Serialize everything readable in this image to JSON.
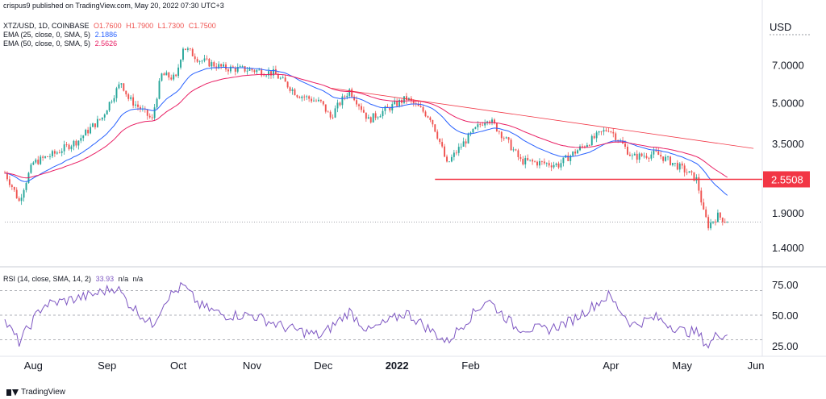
{
  "publish_line": "crispus9 published on TradingView.com, May 20, 2022 07:30 UTC+3",
  "legend": {
    "symbol": "XTZ/USD, 1D, COINBASE",
    "open": "O1.7600",
    "high": "H1.7900",
    "low": "L1.7300",
    "close": "C1.7500",
    "ema25": "EMA (25, close, 0, SMA, 5)",
    "ema25_value": "2.1886",
    "ema50": "EMA (50, close, 0, SMA, 5)",
    "ema50_value": "2.5626",
    "rsi": "RSI (14, close, SMA, 14, 2)",
    "rsi_value": "33.93",
    "rsi_na1": "n/a",
    "rsi_na2": "n/a"
  },
  "footer": {
    "brand": "TradingView"
  },
  "colors": {
    "up": "#26a69a",
    "down": "#ef5350",
    "ema25": "#2962ff",
    "ema50": "#e91e63",
    "rsi": "#7e57c2",
    "level": "#f23645",
    "trend": "#f23645",
    "grid": "#dcdfe6"
  },
  "chart_data": [
    {
      "type": "candlestick",
      "symbol": "XTZ/USD",
      "interval": "1D",
      "exchange": "COINBASE",
      "y_scale": "log",
      "currency_label": "USD",
      "y_ticks": [
        1.4,
        1.9,
        3.5,
        5.0,
        7.0
      ],
      "y_tick_labels": [
        "1.4000",
        "1.9000",
        "3.5000",
        "5.0000",
        "7.0000"
      ],
      "x_tick_labels": [
        "Aug",
        "Sep",
        "Oct",
        "Nov",
        "Dec",
        "2022",
        "Feb",
        "Apr",
        "May",
        "Jun"
      ],
      "x_range": [
        "2021-07-20",
        "2022-06-02"
      ],
      "price_anchors": [
        {
          "date": "2021-07-20",
          "close": 2.7
        },
        {
          "date": "2021-07-26",
          "close": 2.1
        },
        {
          "date": "2021-08-01",
          "close": 2.95
        },
        {
          "date": "2021-08-10",
          "close": 3.2
        },
        {
          "date": "2021-08-20",
          "close": 3.6
        },
        {
          "date": "2021-08-30",
          "close": 4.4
        },
        {
          "date": "2021-09-07",
          "close": 6.0
        },
        {
          "date": "2021-09-10",
          "close": 5.2
        },
        {
          "date": "2021-09-20",
          "close": 4.3
        },
        {
          "date": "2021-09-24",
          "close": 6.4
        },
        {
          "date": "2021-09-30",
          "close": 6.2
        },
        {
          "date": "2021-10-03",
          "close": 8.2
        },
        {
          "date": "2021-10-10",
          "close": 7.3
        },
        {
          "date": "2021-10-20",
          "close": 6.8
        },
        {
          "date": "2021-10-31",
          "close": 6.7
        },
        {
          "date": "2021-11-10",
          "close": 6.5
        },
        {
          "date": "2021-11-20",
          "close": 5.4
        },
        {
          "date": "2021-11-30",
          "close": 5.0
        },
        {
          "date": "2021-12-04",
          "close": 4.4
        },
        {
          "date": "2021-12-12",
          "close": 5.6
        },
        {
          "date": "2021-12-20",
          "close": 4.3
        },
        {
          "date": "2022-01-05",
          "close": 5.2
        },
        {
          "date": "2022-01-15",
          "close": 4.4
        },
        {
          "date": "2022-01-22",
          "close": 2.9
        },
        {
          "date": "2022-01-30",
          "close": 3.6
        },
        {
          "date": "2022-02-08",
          "close": 4.4
        },
        {
          "date": "2022-02-22",
          "close": 3.0
        },
        {
          "date": "2022-03-10",
          "close": 2.9
        },
        {
          "date": "2022-03-20",
          "close": 3.4
        },
        {
          "date": "2022-03-31",
          "close": 4.0
        },
        {
          "date": "2022-04-10",
          "close": 3.1
        },
        {
          "date": "2022-04-20",
          "close": 3.2
        },
        {
          "date": "2022-05-01",
          "close": 2.8
        },
        {
          "date": "2022-05-07",
          "close": 2.55
        },
        {
          "date": "2022-05-10",
          "close": 1.9
        },
        {
          "date": "2022-05-12",
          "close": 1.7
        },
        {
          "date": "2022-05-16",
          "close": 1.85
        },
        {
          "date": "2022-05-20",
          "close": 1.75
        }
      ],
      "last_close": 1.75,
      "annotations": [
        {
          "type": "horizontal_line",
          "price": 2.5508,
          "label": "2.5508",
          "from": "2022-01-17",
          "to": "2022-05-31"
        },
        {
          "type": "trend_line",
          "from": {
            "date": "2021-12-04",
            "price": 5.7
          },
          "to": {
            "date": "2022-05-31",
            "price": 3.35
          }
        }
      ]
    },
    {
      "type": "line",
      "name": "RSI (14, close, SMA, 14, 2)",
      "y_ticks": [
        25,
        50,
        75
      ],
      "y_tick_labels": [
        "25.00",
        "50.00",
        "75.00"
      ],
      "levels": [
        30,
        50,
        70
      ],
      "anchors": [
        {
          "date": "2021-07-20",
          "value": 45
        },
        {
          "date": "2021-07-26",
          "value": 28
        },
        {
          "date": "2021-08-05",
          "value": 58
        },
        {
          "date": "2021-08-15",
          "value": 62
        },
        {
          "date": "2021-08-25",
          "value": 66
        },
        {
          "date": "2021-09-05",
          "value": 73
        },
        {
          "date": "2021-09-10",
          "value": 60
        },
        {
          "date": "2021-09-20",
          "value": 42
        },
        {
          "date": "2021-09-26",
          "value": 64
        },
        {
          "date": "2021-10-03",
          "value": 74
        },
        {
          "date": "2021-10-10",
          "value": 58
        },
        {
          "date": "2021-10-20",
          "value": 50
        },
        {
          "date": "2021-11-01",
          "value": 50
        },
        {
          "date": "2021-11-15",
          "value": 40
        },
        {
          "date": "2021-11-30",
          "value": 33
        },
        {
          "date": "2021-12-12",
          "value": 53
        },
        {
          "date": "2021-12-20",
          "value": 37
        },
        {
          "date": "2022-01-05",
          "value": 52
        },
        {
          "date": "2022-01-22",
          "value": 28
        },
        {
          "date": "2022-01-30",
          "value": 45
        },
        {
          "date": "2022-02-08",
          "value": 63
        },
        {
          "date": "2022-02-20",
          "value": 40
        },
        {
          "date": "2022-03-05",
          "value": 38
        },
        {
          "date": "2022-03-15",
          "value": 45
        },
        {
          "date": "2022-03-31",
          "value": 66
        },
        {
          "date": "2022-04-10",
          "value": 42
        },
        {
          "date": "2022-04-20",
          "value": 48
        },
        {
          "date": "2022-05-01",
          "value": 37
        },
        {
          "date": "2022-05-07",
          "value": 36
        },
        {
          "date": "2022-05-12",
          "value": 25
        },
        {
          "date": "2022-05-16",
          "value": 35
        },
        {
          "date": "2022-05-20",
          "value": 33.93
        }
      ]
    }
  ]
}
